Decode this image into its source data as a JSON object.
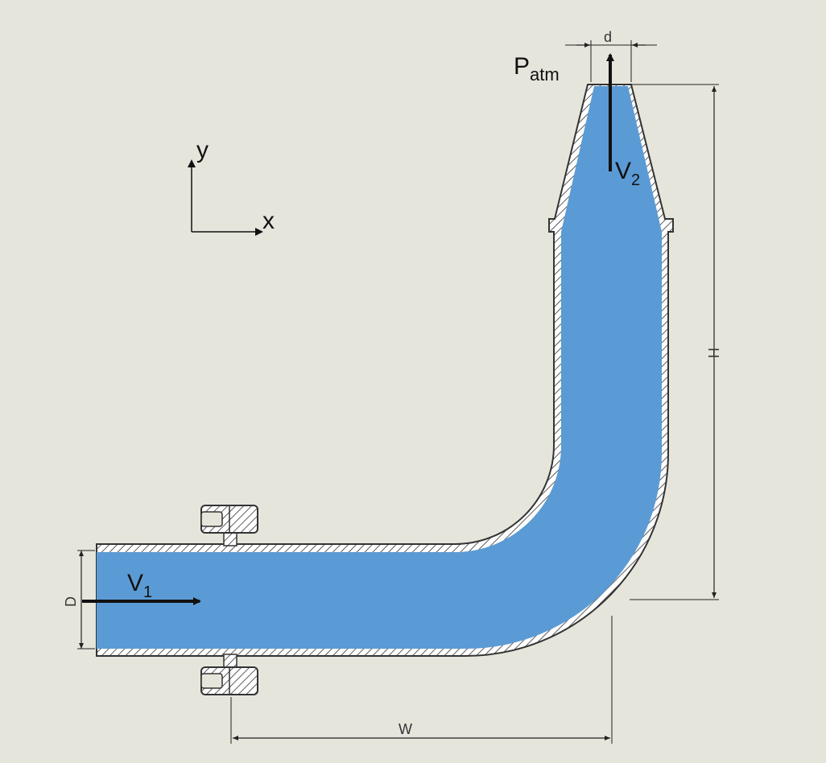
{
  "labels": {
    "v1": "V",
    "v1_sub": "1",
    "v2": "V",
    "v2_sub": "2",
    "patm": "P",
    "patm_sub": "atm",
    "axis_x": "x",
    "axis_y": "y"
  },
  "dimensions": {
    "d": "d",
    "D": "D",
    "H": "H",
    "W": "W"
  },
  "colors": {
    "background": "#e6e5dc",
    "fluid": "#5b9bd5",
    "pipe_wall": "#333333",
    "arrow": "#111111"
  }
}
